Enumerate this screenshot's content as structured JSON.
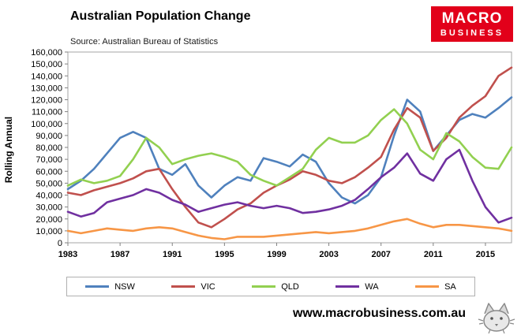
{
  "header": {
    "title": "Australian Population Change",
    "source": "Source: Australian Bureau of Statistics",
    "logo": {
      "line1": "MACRO",
      "line2": "BUSINESS",
      "bg": "#e2001a",
      "fg": "#ffffff"
    }
  },
  "chart_data": {
    "type": "line",
    "title": "Australian Population Change",
    "subtitle": "Source: Australian Bureau of Statistics",
    "xlabel": "",
    "ylabel": "Rolling Annual",
    "ylim": [
      0,
      160000
    ],
    "ytick_step": 10000,
    "grid": false,
    "legend_position": "bottom",
    "xticks": [
      1983,
      1987,
      1991,
      1995,
      1999,
      2003,
      2007,
      2011,
      2015
    ],
    "x": [
      1983,
      1984,
      1985,
      1986,
      1987,
      1988,
      1989,
      1990,
      1991,
      1992,
      1993,
      1994,
      1995,
      1996,
      1997,
      1998,
      1999,
      2000,
      2001,
      2002,
      2003,
      2004,
      2005,
      2006,
      2007,
      2008,
      2009,
      2010,
      2011,
      2012,
      2013,
      2014,
      2015,
      2016,
      2017
    ],
    "series": [
      {
        "name": "NSW",
        "color": "#4f81bd",
        "values": [
          45000,
          52000,
          62000,
          75000,
          88000,
          93000,
          88000,
          62000,
          57000,
          66000,
          48000,
          38000,
          48000,
          55000,
          52000,
          71000,
          68000,
          64000,
          74000,
          68000,
          50000,
          38000,
          33000,
          40000,
          55000,
          90000,
          120000,
          110000,
          77000,
          90000,
          103000,
          108000,
          105000,
          113000,
          122000
        ]
      },
      {
        "name": "VIC",
        "color": "#c0504d",
        "values": [
          42000,
          40000,
          44000,
          47000,
          50000,
          54000,
          60000,
          62000,
          45000,
          30000,
          17000,
          13000,
          20000,
          28000,
          33000,
          42000,
          48000,
          53000,
          60000,
          57000,
          52000,
          50000,
          55000,
          63000,
          72000,
          95000,
          113000,
          105000,
          77000,
          88000,
          105000,
          115000,
          123000,
          140000,
          147000
        ]
      },
      {
        "name": "QLD",
        "color": "#92d050",
        "values": [
          48000,
          53000,
          50000,
          52000,
          56000,
          70000,
          88000,
          80000,
          66000,
          70000,
          73000,
          75000,
          72000,
          68000,
          57000,
          52000,
          48000,
          55000,
          62000,
          78000,
          88000,
          84000,
          84000,
          90000,
          103000,
          112000,
          100000,
          78000,
          70000,
          92000,
          85000,
          72000,
          63000,
          62000,
          80000
        ]
      },
      {
        "name": "WA",
        "color": "#7030a0",
        "values": [
          26000,
          22000,
          25000,
          34000,
          37000,
          40000,
          45000,
          42000,
          36000,
          32000,
          26000,
          29000,
          32000,
          34000,
          31000,
          29000,
          31000,
          29000,
          25000,
          26000,
          28000,
          31000,
          36000,
          45000,
          55000,
          63000,
          75000,
          58000,
          52000,
          70000,
          78000,
          52000,
          30000,
          17000,
          21000
        ]
      },
      {
        "name": "SA",
        "color": "#f79646",
        "values": [
          10000,
          8000,
          10000,
          12000,
          11000,
          10000,
          12000,
          13000,
          12000,
          9000,
          6000,
          4000,
          3000,
          5000,
          5000,
          5000,
          6000,
          7000,
          8000,
          9000,
          8000,
          9000,
          10000,
          12000,
          15000,
          18000,
          20000,
          16000,
          13000,
          15000,
          15000,
          14000,
          13000,
          12000,
          10000
        ]
      }
    ]
  },
  "footer": {
    "url": "www.macrobusiness.com.au"
  }
}
